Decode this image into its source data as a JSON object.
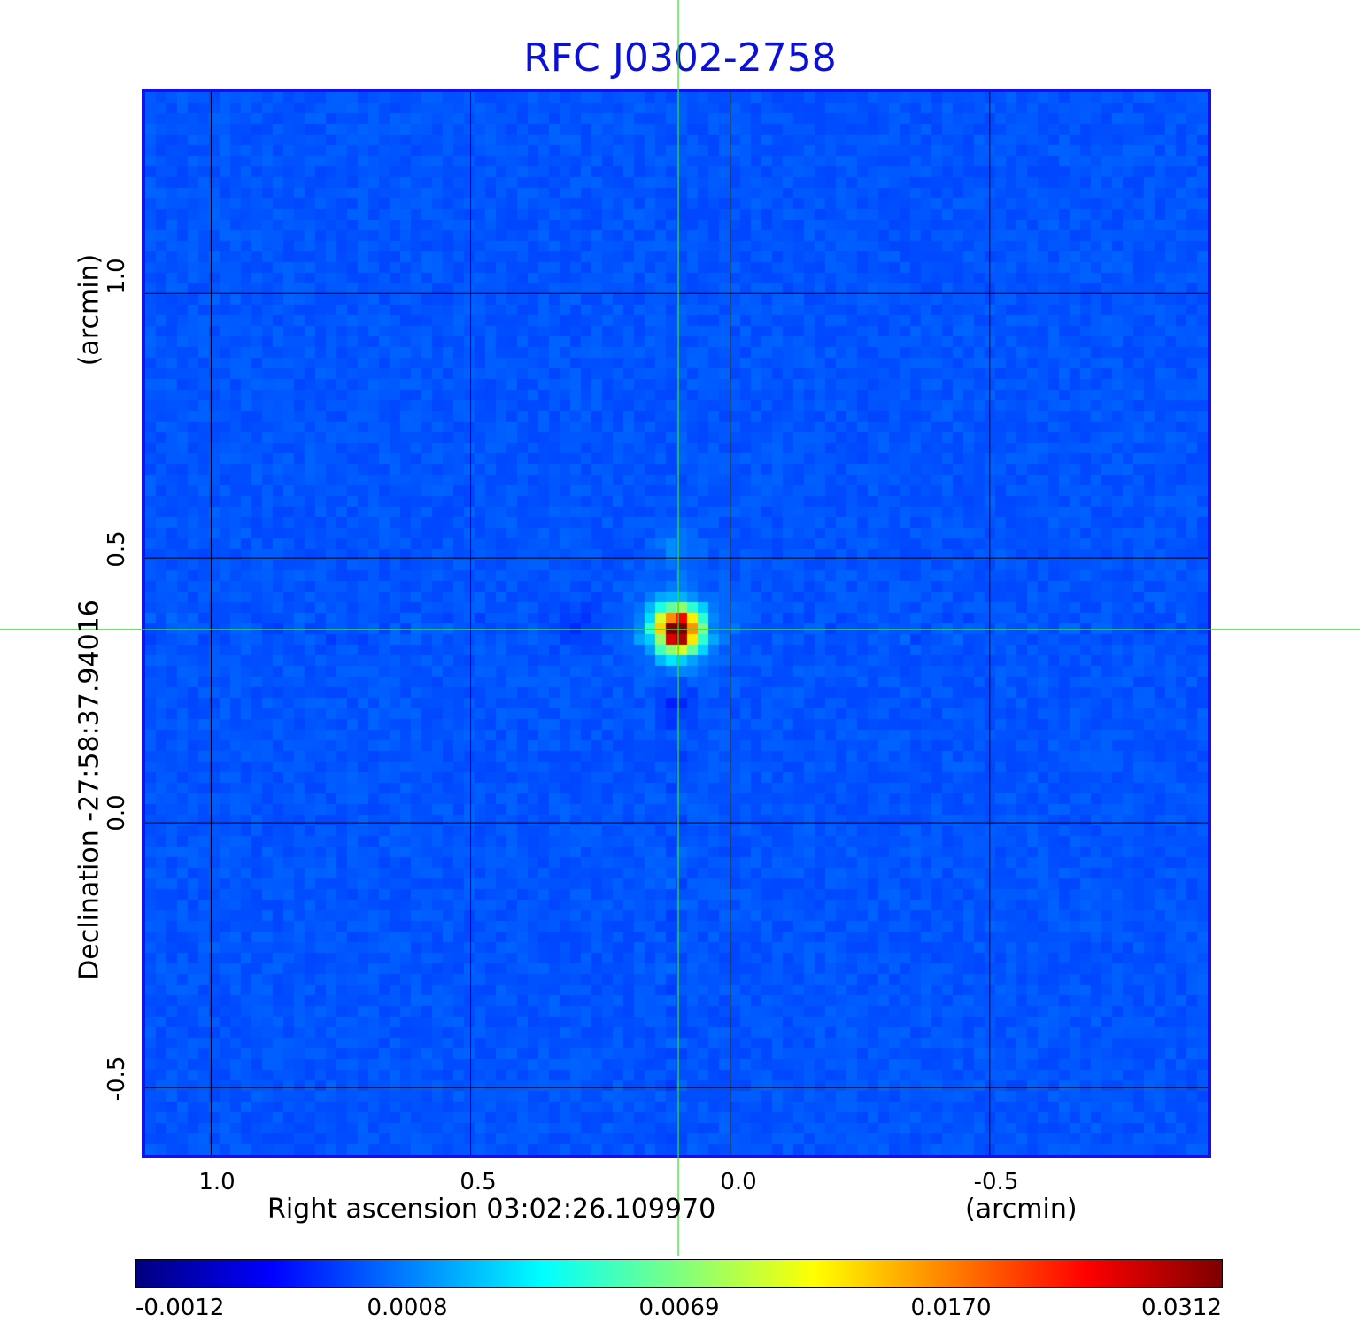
{
  "title": "RFC J0302-2758",
  "x_axis": {
    "label": "Right ascension  03:02:26.109970",
    "unit": "(arcmin)",
    "ticks": [
      "1.0",
      "0.5",
      "0.0",
      "-0.5"
    ],
    "tick_values": [
      1.0,
      0.5,
      0.0,
      -0.5
    ],
    "range": [
      1.127,
      -0.92
    ]
  },
  "y_axis": {
    "label": "Declination  -27:58:37.94016",
    "unit": "(arcmin)",
    "ticks": [
      "1.0",
      "0.5",
      "0.0",
      "-0.5"
    ],
    "tick_values": [
      1.0,
      0.5,
      0.0,
      -0.5
    ],
    "range": [
      -0.627,
      1.38
    ]
  },
  "image": {
    "source_offset_arcmin": {
      "ra": 0.1,
      "dec": 0.365
    },
    "crosshair_color": "#33dd33",
    "grid_color": "#000000",
    "frame_color": "#1411ee"
  },
  "colorbar": {
    "labels": [
      "-0.0012",
      "0.0008",
      "0.0069",
      "0.0170",
      "0.0312"
    ],
    "colors": [
      "#00007f",
      "#0000ff",
      "#007fff",
      "#00ffff",
      "#7fff7f",
      "#ffff00",
      "#ff7f00",
      "#ff0000",
      "#7f0000"
    ]
  }
}
